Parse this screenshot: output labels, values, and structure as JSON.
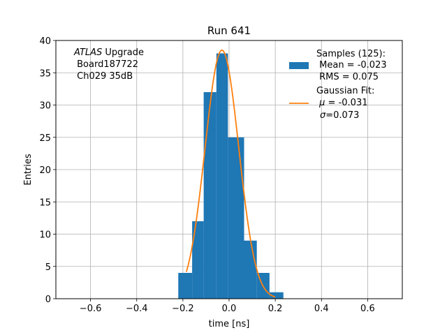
{
  "chart_data": {
    "type": "bar",
    "title": "Run 641",
    "xlabel": "time [ns]",
    "ylabel": "Entries",
    "xlim": [
      -0.75,
      0.75
    ],
    "ylim": [
      0,
      40
    ],
    "xticks": [
      "−0.6",
      "−0.4",
      "−0.2",
      "0.0",
      "0.2",
      "0.4",
      "0.6"
    ],
    "xtick_values": [
      -0.6,
      -0.4,
      -0.2,
      0.0,
      0.2,
      0.4,
      0.6
    ],
    "yticks": [
      "0",
      "5",
      "10",
      "15",
      "20",
      "25",
      "30",
      "35",
      "40"
    ],
    "ytick_values": [
      0,
      5,
      10,
      15,
      20,
      25,
      30,
      35,
      40
    ],
    "grid": true,
    "histogram": {
      "color": "#1f77b4",
      "bins": [
        {
          "x0": -0.22,
          "x1": -0.16,
          "count": 4
        },
        {
          "x0": -0.16,
          "x1": -0.11,
          "count": 12
        },
        {
          "x0": -0.11,
          "x1": -0.055,
          "count": 32
        },
        {
          "x0": -0.055,
          "x1": -0.005,
          "count": 38
        },
        {
          "x0": -0.005,
          "x1": 0.065,
          "count": 25
        },
        {
          "x0": 0.065,
          "x1": 0.12,
          "count": 9
        },
        {
          "x0": 0.12,
          "x1": 0.175,
          "count": 4
        },
        {
          "x0": 0.175,
          "x1": 0.235,
          "count": 1
        }
      ]
    },
    "fit": {
      "color": "#ff7f0e",
      "mu": -0.031,
      "sigma": 0.073,
      "amplitude": 38.5,
      "xmin": -0.185,
      "xmax": 0.2
    },
    "annotation": {
      "line1_italic": "ATLAS",
      "line1_rest": " Upgrade",
      "line2": " Board187722",
      "line3": " Ch029 35dB"
    },
    "legend": {
      "placement": "top-right",
      "entry1": {
        "line1": "Samples (125):",
        "line2": " Mean = -0.023",
        "line3": " RMS = 0.075"
      },
      "entry2": {
        "line1": "Gaussian Fit:",
        "line2_prefix": " ",
        "line2_symbol": "μ",
        "line2_rest": " = -0.031",
        "line3_symbol": "σ",
        "line3_rest": "=0.073"
      }
    }
  }
}
